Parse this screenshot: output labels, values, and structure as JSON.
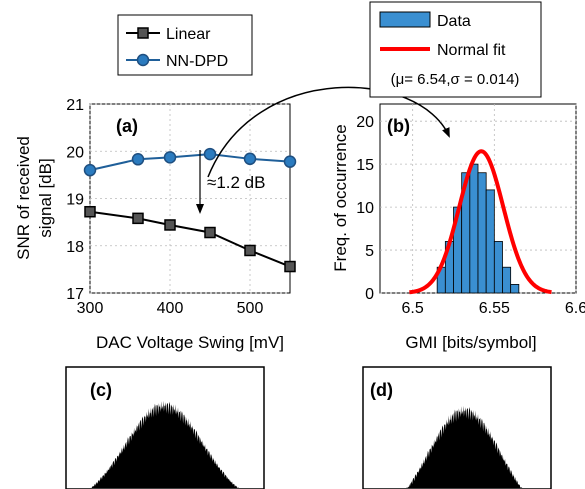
{
  "colors": {
    "linear_marker": "#555555",
    "nndpd_line": "#1f5f99",
    "nndpd_marker": "#2b7bbf",
    "hist_bar": "#3a8fd1",
    "normal_fit": "#ff0000"
  },
  "panels": {
    "a": {
      "label": "(a)"
    },
    "b": {
      "label": "(b)"
    },
    "c": {
      "label": "(c)"
    },
    "d": {
      "label": "(d)"
    }
  },
  "annotations": {
    "gap": "≈1.2 dB"
  },
  "chart_data": [
    {
      "type": "line",
      "panel": "(a)",
      "xlabel": "DAC Voltage Swing [mV]",
      "ylabel_line1": "SNR of received",
      "ylabel_line2": "signal [dB]",
      "xlim": [
        300,
        550
      ],
      "ylim": [
        17,
        21
      ],
      "xticks": [
        300,
        400,
        500
      ],
      "yticks": [
        17,
        18,
        19,
        20,
        21
      ],
      "legend_position": "top",
      "series": [
        {
          "name": "Linear",
          "marker": "square",
          "x": [
            300,
            360,
            400,
            450,
            500,
            550
          ],
          "y": [
            18.72,
            18.58,
            18.44,
            18.28,
            17.9,
            17.56
          ]
        },
        {
          "name": "NN-DPD",
          "marker": "circle",
          "x": [
            300,
            360,
            400,
            450,
            500,
            550
          ],
          "y": [
            19.6,
            19.83,
            19.87,
            19.94,
            19.84,
            19.78
          ]
        }
      ]
    },
    {
      "type": "bar",
      "panel": "(b)",
      "xlabel": "GMI [bits/symbol]",
      "ylabel": "Freq. of occurrence",
      "xlim": [
        6.48,
        6.6
      ],
      "ylim": [
        0,
        22
      ],
      "xticks": [
        6.5,
        6.55,
        6.6
      ],
      "xtick_labels": [
        "6.5",
        "6.55",
        "6.6"
      ],
      "yticks": [
        0,
        5,
        10,
        15,
        20
      ],
      "legend_position": "top",
      "legend": [
        "Data",
        "Normal fit"
      ],
      "fit_text": "(μ= 6.54,σ = 0.014)",
      "bin_edges": [
        6.515,
        6.52,
        6.525,
        6.53,
        6.535,
        6.54,
        6.545,
        6.55,
        6.555,
        6.56,
        6.565
      ],
      "counts": [
        3,
        6,
        10,
        14,
        15,
        14,
        12,
        6,
        3,
        1
      ],
      "fit": {
        "mu": 6.542,
        "sigma": 0.0135,
        "peak": 16.5
      }
    }
  ]
}
